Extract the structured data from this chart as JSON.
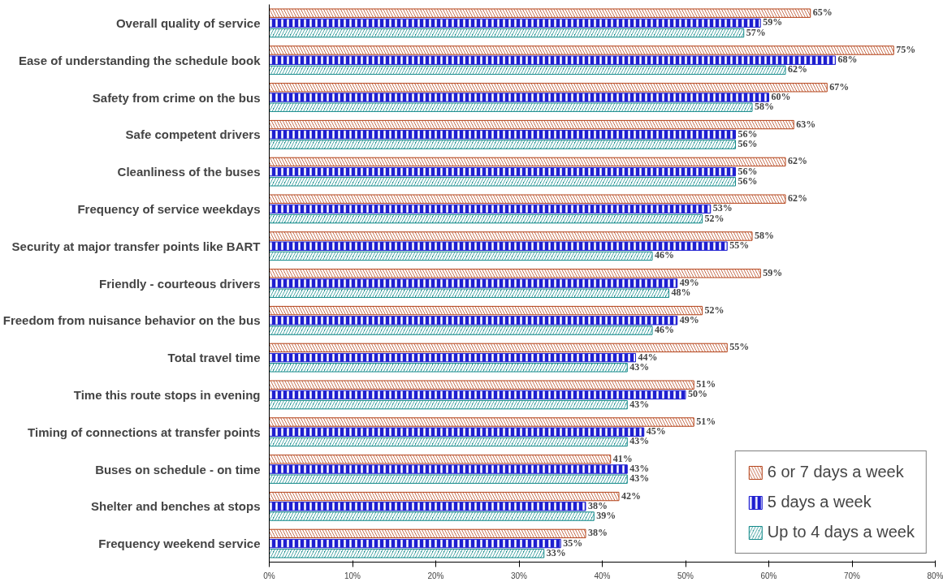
{
  "chart_data": {
    "type": "bar",
    "orientation": "horizontal",
    "categories": [
      "Overall quality of service",
      "Ease of understanding the schedule book",
      "Safety from crime on the bus",
      "Safe competent drivers",
      "Cleanliness of the buses",
      "Frequency of service weekdays",
      "Security at major transfer points like BART",
      "Friendly - courteous drivers",
      "Freedom from nuisance behavior on the bus",
      "Total travel time",
      "Time this route stops in evening",
      "Timing of connections at transfer points",
      "Buses on schedule - on time",
      "Shelter and benches at stops",
      "Frequency weekend service"
    ],
    "series": [
      {
        "name": "6 or 7 days a week",
        "color": "#b5441b",
        "values": [
          65,
          75,
          67,
          63,
          62,
          62,
          58,
          59,
          52,
          55,
          51,
          51,
          41,
          42,
          38
        ],
        "value_labels": [
          "65%",
          "75%",
          "67%",
          "63%",
          "62%",
          "62%",
          "58%",
          "59%",
          "52%",
          "55%",
          "51%",
          "51%",
          "41%",
          "42%",
          "38%"
        ]
      },
      {
        "name": "5 days a week",
        "color": "#1f1fd0",
        "values": [
          59,
          68,
          60,
          56,
          56,
          53,
          55,
          49,
          49,
          44,
          50,
          45,
          43,
          38,
          35
        ],
        "value_labels": [
          "59%",
          "68%",
          "60%",
          "56%",
          "56%",
          "53%",
          "55%",
          "49%",
          "49%",
          "44%",
          "50%",
          "45%",
          "43%",
          "38%",
          "35%"
        ]
      },
      {
        "name": "Up to 4 days a week",
        "color": "#138a8a",
        "values": [
          57,
          62,
          58,
          56,
          56,
          52,
          46,
          48,
          46,
          43,
          43,
          43,
          43,
          39,
          33
        ],
        "value_labels": [
          "57%",
          "62%",
          "58%",
          "56%",
          "56%",
          "52%",
          "46%",
          "48%",
          "46%",
          "43%",
          "43%",
          "43%",
          "43%",
          "39%",
          "33%"
        ]
      }
    ],
    "xlim": [
      0,
      80
    ],
    "xticks": [
      {
        "value": 0,
        "label": "0%"
      },
      {
        "value": 10,
        "label": "10%"
      },
      {
        "value": 20,
        "label": "20%"
      },
      {
        "value": 30,
        "label": "30%"
      },
      {
        "value": 40,
        "label": "40%"
      },
      {
        "value": 50,
        "label": "50%"
      },
      {
        "value": 60,
        "label": "60%"
      },
      {
        "value": 70,
        "label": "70%"
      },
      {
        "value": 80,
        "label": "80%"
      }
    ],
    "grid": false,
    "legend": "bottom right"
  }
}
